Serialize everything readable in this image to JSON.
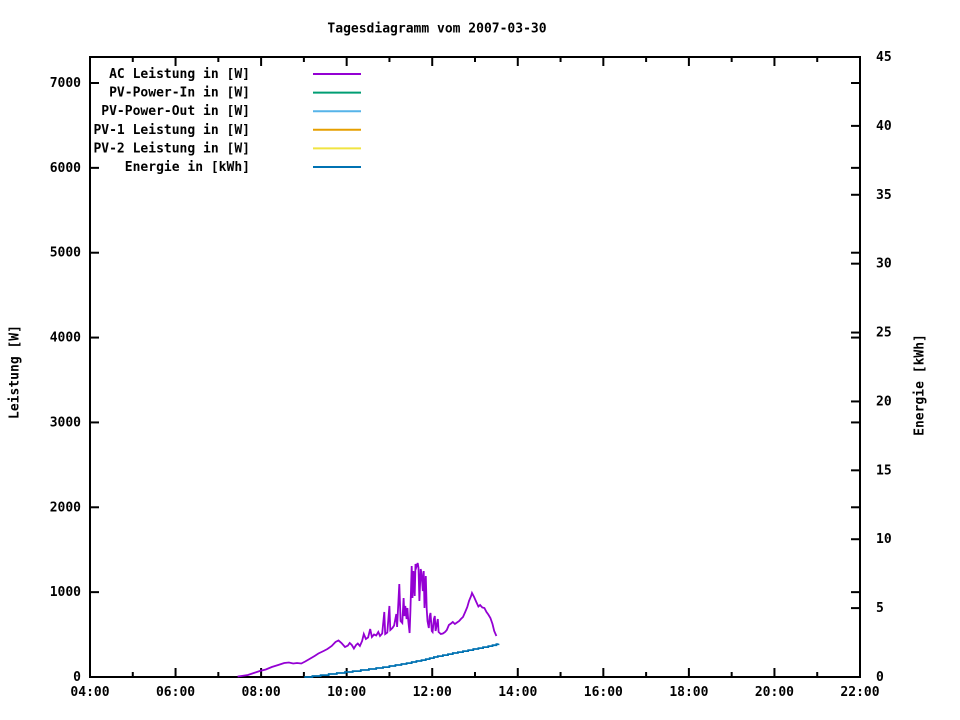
{
  "title": "Tagesdiagramm vom 2007-03-30",
  "chart_data": {
    "type": "line",
    "title": "Tagesdiagramm vom 2007-03-30",
    "x_axis": {
      "unit": "time-of-day",
      "range_hours": [
        4,
        22
      ],
      "major_ticks": [
        {
          "hour": 4,
          "label": "04:00"
        },
        {
          "hour": 6,
          "label": "06:00"
        },
        {
          "hour": 8,
          "label": "08:00"
        },
        {
          "hour": 10,
          "label": "10:00"
        },
        {
          "hour": 12,
          "label": "12:00"
        },
        {
          "hour": 14,
          "label": "14:00"
        },
        {
          "hour": 16,
          "label": "16:00"
        },
        {
          "hour": 18,
          "label": "18:00"
        },
        {
          "hour": 20,
          "label": "20:00"
        },
        {
          "hour": 22,
          "label": "22:00"
        }
      ],
      "minor_tick_hours": [
        5,
        7,
        9,
        11,
        13,
        15,
        17,
        19,
        21
      ]
    },
    "y_left": {
      "label": "Leistung [W]",
      "range": [
        0,
        7306
      ],
      "ticks": [
        {
          "value": 0,
          "label": "0"
        },
        {
          "value": 1000,
          "label": "1000"
        },
        {
          "value": 2000,
          "label": "2000"
        },
        {
          "value": 3000,
          "label": "3000"
        },
        {
          "value": 4000,
          "label": "4000"
        },
        {
          "value": 5000,
          "label": "5000"
        },
        {
          "value": 6000,
          "label": "6000"
        },
        {
          "value": 7000,
          "label": "7000"
        }
      ],
      "grid": false
    },
    "y_right": {
      "label": "Energie [kWh]",
      "range": [
        0,
        45
      ],
      "ticks": [
        {
          "value": 0,
          "label": "0"
        },
        {
          "value": 5,
          "label": "5"
        },
        {
          "value": 10,
          "label": "10"
        },
        {
          "value": 15,
          "label": "15"
        },
        {
          "value": 20,
          "label": "20"
        },
        {
          "value": 25,
          "label": "25"
        },
        {
          "value": 30,
          "label": "30"
        },
        {
          "value": 35,
          "label": "35"
        },
        {
          "value": 40,
          "label": "40"
        },
        {
          "value": 45,
          "label": "45"
        }
      ],
      "grid": false
    },
    "legend": {
      "position": "top-left-inside"
    },
    "series": [
      {
        "name": "AC Leistung in [W]",
        "color": "#9400d3",
        "axis": "left",
        "step": false,
        "points": [
          [
            7.45,
            6
          ],
          [
            7.54,
            12
          ],
          [
            7.69,
            24
          ],
          [
            7.83,
            47
          ],
          [
            7.97,
            71
          ],
          [
            8.11,
            88
          ],
          [
            8.25,
            118
          ],
          [
            8.4,
            141
          ],
          [
            8.54,
            165
          ],
          [
            8.65,
            171
          ],
          [
            8.75,
            159
          ],
          [
            8.84,
            165
          ],
          [
            8.94,
            159
          ],
          [
            9.03,
            183
          ],
          [
            9.13,
            212
          ],
          [
            9.25,
            247
          ],
          [
            9.34,
            277
          ],
          [
            9.46,
            306
          ],
          [
            9.55,
            330
          ],
          [
            9.65,
            365
          ],
          [
            9.74,
            412
          ],
          [
            9.81,
            430
          ],
          [
            9.88,
            401
          ],
          [
            9.96,
            354
          ],
          [
            10.03,
            371
          ],
          [
            10.07,
            401
          ],
          [
            10.12,
            377
          ],
          [
            10.17,
            336
          ],
          [
            10.22,
            377
          ],
          [
            10.26,
            395
          ],
          [
            10.31,
            365
          ],
          [
            10.36,
            424
          ],
          [
            10.4,
            507
          ],
          [
            10.45,
            448
          ],
          [
            10.5,
            466
          ],
          [
            10.55,
            566
          ],
          [
            10.59,
            471
          ],
          [
            10.64,
            501
          ],
          [
            10.69,
            489
          ],
          [
            10.74,
            530
          ],
          [
            10.78,
            483
          ],
          [
            10.83,
            513
          ],
          [
            10.88,
            766
          ],
          [
            10.9,
            507
          ],
          [
            10.95,
            524
          ],
          [
            11.0,
            837
          ],
          [
            11.02,
            554
          ],
          [
            11.07,
            577
          ],
          [
            11.11,
            607
          ],
          [
            11.16,
            742
          ],
          [
            11.18,
            589
          ],
          [
            11.23,
            1096
          ],
          [
            11.26,
            660
          ],
          [
            11.3,
            636
          ],
          [
            11.33,
            931
          ],
          [
            11.35,
            719
          ],
          [
            11.37,
            837
          ],
          [
            11.4,
            684
          ],
          [
            11.42,
            813
          ],
          [
            11.44,
            660
          ],
          [
            11.47,
            519
          ],
          [
            11.49,
            778
          ],
          [
            11.52,
            1308
          ],
          [
            11.54,
            931
          ],
          [
            11.56,
            1249
          ],
          [
            11.59,
            955
          ],
          [
            11.61,
            1332
          ],
          [
            11.63,
            1296
          ],
          [
            11.66,
            1343
          ],
          [
            11.68,
            1284
          ],
          [
            11.7,
            896
          ],
          [
            11.73,
            1273
          ],
          [
            11.75,
            1226
          ],
          [
            11.78,
            1013
          ],
          [
            11.8,
            1249
          ],
          [
            11.82,
            813
          ],
          [
            11.85,
            1190
          ],
          [
            11.87,
            801
          ],
          [
            11.89,
            660
          ],
          [
            11.92,
            577
          ],
          [
            11.94,
            719
          ],
          [
            11.96,
            754
          ],
          [
            11.99,
            542
          ],
          [
            12.01,
            530
          ],
          [
            12.04,
            684
          ],
          [
            12.06,
            719
          ],
          [
            12.08,
            542
          ],
          [
            12.13,
            684
          ],
          [
            12.15,
            530
          ],
          [
            12.2,
            507
          ],
          [
            12.25,
            513
          ],
          [
            12.3,
            530
          ],
          [
            12.34,
            554
          ],
          [
            12.39,
            613
          ],
          [
            12.44,
            630
          ],
          [
            12.48,
            648
          ],
          [
            12.53,
            625
          ],
          [
            12.58,
            642
          ],
          [
            12.63,
            660
          ],
          [
            12.67,
            684
          ],
          [
            12.72,
            707
          ],
          [
            12.77,
            766
          ],
          [
            12.82,
            825
          ],
          [
            12.86,
            896
          ],
          [
            12.91,
            955
          ],
          [
            12.93,
            990
          ],
          [
            12.98,
            943
          ],
          [
            13.03,
            884
          ],
          [
            13.08,
            831
          ],
          [
            13.12,
            849
          ],
          [
            13.17,
            819
          ],
          [
            13.22,
            813
          ],
          [
            13.27,
            766
          ],
          [
            13.31,
            737
          ],
          [
            13.36,
            695
          ],
          [
            13.41,
            625
          ],
          [
            13.45,
            542
          ],
          [
            13.5,
            483
          ]
        ]
      },
      {
        "name": "PV-Power-In in [W]",
        "color": "#009e73",
        "axis": "left",
        "step": false,
        "points": []
      },
      {
        "name": "PV-Power-Out in [W]",
        "color": "#56b4e9",
        "axis": "left",
        "step": false,
        "points": []
      },
      {
        "name": "PV-1 Leistung in [W]",
        "color": "#e69f00",
        "axis": "left",
        "step": false,
        "points": []
      },
      {
        "name": "PV-2 Leistung in [W]",
        "color": "#f0e442",
        "axis": "left",
        "step": false,
        "points": []
      },
      {
        "name": "Energie in [kWh]",
        "color": "#0072b2",
        "axis": "right",
        "step": true,
        "points": [
          [
            9.01,
            0
          ],
          [
            9.2,
            0.07
          ],
          [
            9.39,
            0.14
          ],
          [
            9.58,
            0.22
          ],
          [
            9.77,
            0.29
          ],
          [
            9.96,
            0.36
          ],
          [
            10.14,
            0.43
          ],
          [
            10.33,
            0.51
          ],
          [
            10.52,
            0.58
          ],
          [
            10.69,
            0.65
          ],
          [
            10.85,
            0.72
          ],
          [
            11.0,
            0.8
          ],
          [
            11.14,
            0.87
          ],
          [
            11.28,
            0.94
          ],
          [
            11.4,
            1.01
          ],
          [
            11.52,
            1.09
          ],
          [
            11.63,
            1.16
          ],
          [
            11.75,
            1.23
          ],
          [
            11.85,
            1.3
          ],
          [
            11.94,
            1.37
          ],
          [
            12.04,
            1.45
          ],
          [
            12.13,
            1.52
          ],
          [
            12.25,
            1.59
          ],
          [
            12.37,
            1.66
          ],
          [
            12.48,
            1.74
          ],
          [
            12.6,
            1.81
          ],
          [
            12.72,
            1.88
          ],
          [
            12.84,
            1.95
          ],
          [
            12.96,
            2.03
          ],
          [
            13.08,
            2.1
          ],
          [
            13.19,
            2.17
          ],
          [
            13.31,
            2.24
          ],
          [
            13.41,
            2.31
          ],
          [
            13.5,
            2.38
          ],
          [
            13.55,
            2.42
          ]
        ]
      }
    ]
  }
}
